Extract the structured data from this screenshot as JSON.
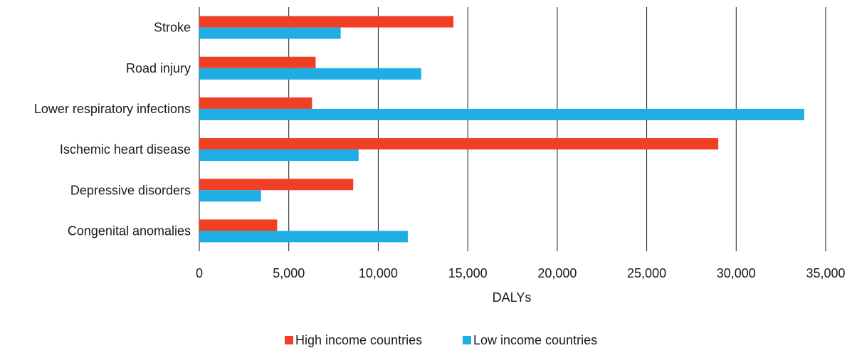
{
  "chart_data": {
    "type": "bar",
    "orientation": "horizontal",
    "categories": [
      "Stroke",
      "Road injury",
      "Lower respiratory infections",
      "Ischemic heart disease",
      "Depressive disorders",
      "Congenital anomalies"
    ],
    "series": [
      {
        "name": "High income countries",
        "color": "#f03f24",
        "values": [
          14200,
          6500,
          6300,
          29000,
          8600,
          4350
        ]
      },
      {
        "name": "Low income countries",
        "color": "#1eaee4",
        "values": [
          7900,
          12400,
          33800,
          8900,
          3450,
          11650
        ]
      }
    ],
    "x_ticks": [
      "0",
      "5,000",
      "10,000",
      "15,000",
      "20,000",
      "25,000",
      "30,000",
      "35,000"
    ],
    "x_tick_values": [
      0,
      5000,
      10000,
      15000,
      20000,
      25000,
      30000,
      35000
    ],
    "xlim": [
      0,
      35000
    ],
    "xlabel": "DALYs",
    "title": "",
    "grid": true,
    "legend_position": "bottom"
  }
}
